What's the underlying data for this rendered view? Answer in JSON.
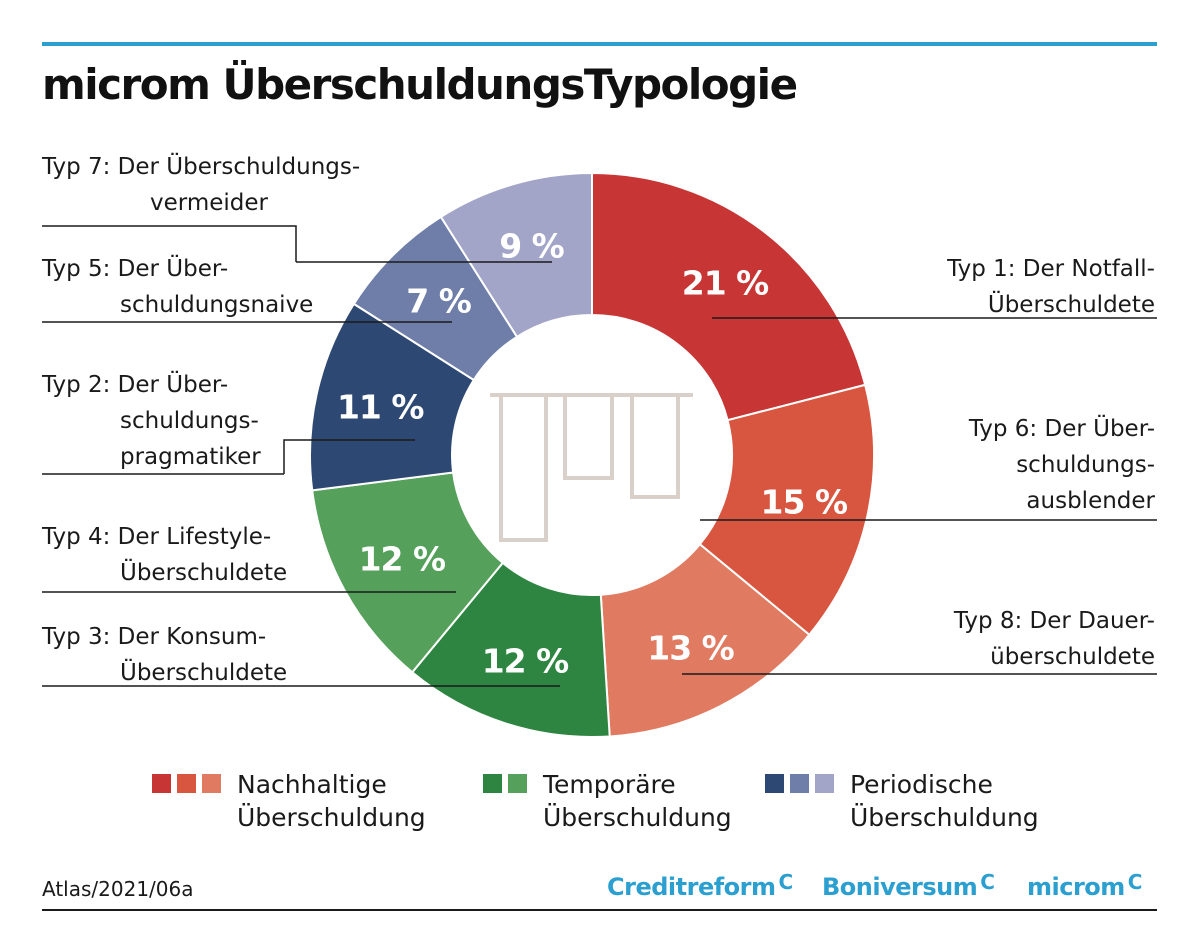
{
  "title": "microm ÜberschuldungsTypologie",
  "chart_data": {
    "type": "pie",
    "donut": true,
    "title": "microm ÜberschuldungsTypologie",
    "slices": [
      {
        "label_lines": [
          "Typ 1: Der Notfall-",
          "Überschuldete"
        ],
        "value": 21,
        "display": "21 %",
        "color": "#c73535",
        "group": "Nachhaltige Überschuldung"
      },
      {
        "label_lines": [
          "Typ 6: Der Über-",
          "schuldungs-",
          "ausblender"
        ],
        "value": 15,
        "display": "15 %",
        "color": "#d85640",
        "group": "Nachhaltige Überschuldung"
      },
      {
        "label_lines": [
          "Typ 8: Der Dauer-",
          "überschuldete"
        ],
        "value": 13,
        "display": "13 %",
        "color": "#e07a60",
        "group": "Nachhaltige Überschuldung"
      },
      {
        "label_lines": [
          "Typ 3: Der Konsum-",
          "Überschuldete"
        ],
        "value": 12,
        "display": "12 %",
        "color": "#2e8541",
        "group": "Temporäre Überschuldung"
      },
      {
        "label_lines": [
          "Typ 4: Der Lifestyle-",
          "Überschuldete"
        ],
        "value": 12,
        "display": "12 %",
        "color": "#55a05a",
        "group": "Temporäre Überschuldung"
      },
      {
        "label_lines": [
          "Typ 2: Der Über-",
          "schuldungs-",
          "pragmatiker"
        ],
        "value": 11,
        "display": "11 %",
        "color": "#2e4874",
        "group": "Periodische Überschuldung"
      },
      {
        "label_lines": [
          "Typ 5: Der Über-",
          "schuldungsnaive"
        ],
        "value": 7,
        "display": "7 %",
        "color": "#6e7ea8",
        "group": "Periodische Überschuldung"
      },
      {
        "label_lines": [
          "Typ 7: Der Überschuldungs-",
          "vermeider"
        ],
        "value": 9,
        "display": "9 %",
        "color": "#a2a4c8",
        "group": "Periodische Überschuldung"
      }
    ],
    "legend": [
      {
        "line1": "Nachhaltige",
        "line2": "Überschuldung",
        "colors": [
          "#c73535",
          "#d85640",
          "#e07a60"
        ]
      },
      {
        "line1": "Temporäre",
        "line2": "Überschuldung",
        "colors": [
          "#2e8541",
          "#55a05a"
        ]
      },
      {
        "line1": "Periodische",
        "line2": "Überschuldung",
        "colors": [
          "#2e4874",
          "#6e7ea8",
          "#a2a4c8"
        ]
      }
    ],
    "legend_placement": "bottom"
  },
  "footer": {
    "code": "Atlas/2021/06a",
    "brands": [
      "Creditreform",
      "Boniversum",
      "microm"
    ],
    "brand_mark": "C",
    "brand_color": "#2b9fd0"
  },
  "center_icon": "bar-chart-outline-icon"
}
